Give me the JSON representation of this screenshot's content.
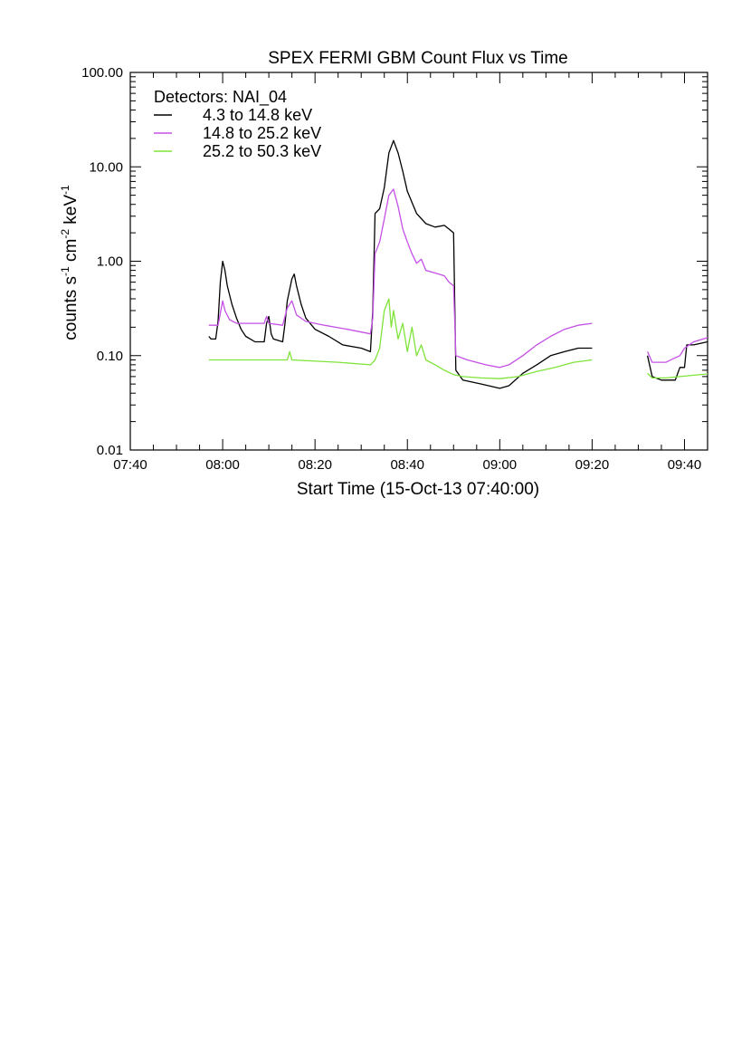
{
  "chart_data": {
    "type": "line",
    "title": "SPEX FERMI GBM Count Flux vs Time",
    "xlabel": "Start Time (15-Oct-13 07:40:00)",
    "ylabel": {
      "text": "counts s",
      "sup1": "-1",
      "mid": " cm",
      "sup2": "-2",
      "tail": " keV",
      "sup3": "-1"
    },
    "y_scale": "log",
    "ylim": [
      0.01,
      100
    ],
    "xlim": [
      "07:40",
      "09:45"
    ],
    "grid": false,
    "legend_placement": "top-left",
    "legend_title": "Detectors: NAI_04",
    "x_ticks": [
      "07:40",
      "08:00",
      "08:20",
      "08:40",
      "09:00",
      "09:20",
      "09:40"
    ],
    "y_ticks": [
      "100.00",
      "10.00",
      "1.00",
      "0.10",
      "0.01"
    ],
    "series": [
      {
        "name": "4.3 to 14.8 keV",
        "color": "#000000",
        "segments": [
          [
            [
              "07:57",
              0.16
            ],
            [
              "07:57.5",
              0.15
            ],
            [
              "07:58.5",
              0.15
            ],
            [
              "07:59",
              0.23
            ],
            [
              "07:59.5",
              0.6
            ],
            [
              "08:00",
              1.0
            ],
            [
              "08:00.5",
              0.8
            ],
            [
              "08:01",
              0.55
            ],
            [
              "08:02",
              0.35
            ],
            [
              "08:03",
              0.25
            ],
            [
              "08:04",
              0.19
            ],
            [
              "08:05",
              0.16
            ],
            [
              "08:06",
              0.15
            ],
            [
              "08:07",
              0.14
            ],
            [
              "08:09",
              0.14
            ],
            [
              "08:09.5",
              0.22
            ],
            [
              "08:10",
              0.26
            ],
            [
              "08:10.5",
              0.17
            ],
            [
              "08:11",
              0.15
            ],
            [
              "08:13",
              0.14
            ],
            [
              "08:13.5",
              0.22
            ],
            [
              "08:14",
              0.38
            ],
            [
              "08:15",
              0.65
            ],
            [
              "08:15.5",
              0.73
            ],
            [
              "08:16",
              0.55
            ],
            [
              "08:17",
              0.35
            ],
            [
              "08:18",
              0.25
            ],
            [
              "08:20",
              0.19
            ],
            [
              "08:23",
              0.16
            ],
            [
              "08:26",
              0.13
            ],
            [
              "08:30",
              0.12
            ],
            [
              "08:32",
              0.11
            ],
            [
              "08:32.5",
              0.3
            ],
            [
              "08:33",
              3.2
            ],
            [
              "08:34",
              3.6
            ],
            [
              "08:35",
              6.0
            ],
            [
              "08:36",
              14.0
            ],
            [
              "08:37",
              19.0
            ],
            [
              "08:38",
              14.0
            ],
            [
              "08:39",
              9.0
            ],
            [
              "08:40",
              5.5
            ],
            [
              "08:42",
              3.2
            ],
            [
              "08:44",
              2.5
            ],
            [
              "08:46",
              2.3
            ],
            [
              "08:48",
              2.4
            ],
            [
              "08:50",
              2.0
            ],
            [
              "08:50.5",
              0.07
            ],
            [
              "08:52",
              0.055
            ],
            [
              "08:56",
              0.05
            ],
            [
              "09:00",
              0.045
            ],
            [
              "09:02",
              0.048
            ],
            [
              "09:05",
              0.065
            ],
            [
              "09:08",
              0.08
            ],
            [
              "09:11",
              0.1
            ],
            [
              "09:14",
              0.11
            ],
            [
              "09:17",
              0.12
            ],
            [
              "09:20",
              0.12
            ]
          ],
          [
            [
              "09:32",
              0.1
            ],
            [
              "09:33",
              0.06
            ],
            [
              "09:35",
              0.055
            ],
            [
              "09:38",
              0.055
            ],
            [
              "09:39",
              0.075
            ],
            [
              "09:40",
              0.075
            ],
            [
              "09:40.5",
              0.13
            ],
            [
              "09:42",
              0.13
            ],
            [
              "09:45",
              0.14
            ]
          ]
        ]
      },
      {
        "name": "14.8 to 25.2 keV",
        "color": "#c550e6",
        "segments": [
          [
            [
              "07:57",
              0.21
            ],
            [
              "07:59",
              0.21
            ],
            [
              "07:59.5",
              0.28
            ],
            [
              "08:00",
              0.38
            ],
            [
              "08:00.5",
              0.3
            ],
            [
              "08:01.5",
              0.24
            ],
            [
              "08:03",
              0.22
            ],
            [
              "08:09",
              0.22
            ],
            [
              "08:09.5",
              0.26
            ],
            [
              "08:10",
              0.22
            ],
            [
              "08:13",
              0.21
            ],
            [
              "08:14",
              0.32
            ],
            [
              "08:15",
              0.38
            ],
            [
              "08:16",
              0.27
            ],
            [
              "08:18",
              0.23
            ],
            [
              "08:22",
              0.21
            ],
            [
              "08:27",
              0.19
            ],
            [
              "08:32",
              0.17
            ],
            [
              "08:32.5",
              0.25
            ],
            [
              "08:33",
              1.2
            ],
            [
              "08:34",
              1.6
            ],
            [
              "08:35",
              2.8
            ],
            [
              "08:36",
              5.0
            ],
            [
              "08:37",
              5.8
            ],
            [
              "08:38",
              3.8
            ],
            [
              "08:39",
              2.2
            ],
            [
              "08:40",
              1.6
            ],
            [
              "08:41",
              1.2
            ],
            [
              "08:42",
              0.95
            ],
            [
              "08:43",
              1.05
            ],
            [
              "08:44",
              0.8
            ],
            [
              "08:46",
              0.75
            ],
            [
              "08:48",
              0.7
            ],
            [
              "08:49",
              0.6
            ],
            [
              "08:50",
              0.55
            ],
            [
              "08:50.5",
              0.1
            ],
            [
              "08:53",
              0.09
            ],
            [
              "08:57",
              0.08
            ],
            [
              "09:00",
              0.075
            ],
            [
              "09:02",
              0.08
            ],
            [
              "09:05",
              0.1
            ],
            [
              "09:08",
              0.13
            ],
            [
              "09:11",
              0.16
            ],
            [
              "09:14",
              0.19
            ],
            [
              "09:17",
              0.21
            ],
            [
              "09:20",
              0.22
            ]
          ],
          [
            [
              "09:32",
              0.11
            ],
            [
              "09:33",
              0.085
            ],
            [
              "09:36",
              0.085
            ],
            [
              "09:38",
              0.095
            ],
            [
              "09:39",
              0.1
            ],
            [
              "09:40",
              0.12
            ],
            [
              "09:42",
              0.14
            ],
            [
              "09:45",
              0.155
            ]
          ]
        ]
      },
      {
        "name": "25.2 to 50.3 keV",
        "color": "#7fe33a",
        "segments": [
          [
            [
              "07:57",
              0.09
            ],
            [
              "08:07",
              0.09
            ],
            [
              "08:14",
              0.09
            ],
            [
              "08:14.5",
              0.11
            ],
            [
              "08:15",
              0.09
            ],
            [
              "08:25",
              0.085
            ],
            [
              "08:32",
              0.08
            ],
            [
              "08:33",
              0.09
            ],
            [
              "08:34",
              0.12
            ],
            [
              "08:35",
              0.3
            ],
            [
              "08:36",
              0.4
            ],
            [
              "08:36.5",
              0.2
            ],
            [
              "08:37",
              0.3
            ],
            [
              "08:38",
              0.15
            ],
            [
              "08:39",
              0.22
            ],
            [
              "08:40",
              0.11
            ],
            [
              "08:41",
              0.2
            ],
            [
              "08:42",
              0.1
            ],
            [
              "08:43",
              0.13
            ],
            [
              "08:44",
              0.09
            ],
            [
              "08:46",
              0.08
            ],
            [
              "08:48",
              0.07
            ],
            [
              "08:50",
              0.063
            ],
            [
              "08:52",
              0.06
            ],
            [
              "08:56",
              0.058
            ],
            [
              "09:00",
              0.057
            ],
            [
              "09:04",
              0.06
            ],
            [
              "09:08",
              0.068
            ],
            [
              "09:12",
              0.075
            ],
            [
              "09:16",
              0.085
            ],
            [
              "09:20",
              0.09
            ]
          ],
          [
            [
              "09:32",
              0.065
            ],
            [
              "09:33",
              0.058
            ],
            [
              "09:36",
              0.058
            ],
            [
              "09:39",
              0.06
            ],
            [
              "09:42",
              0.062
            ],
            [
              "09:45",
              0.064
            ]
          ]
        ]
      }
    ]
  }
}
